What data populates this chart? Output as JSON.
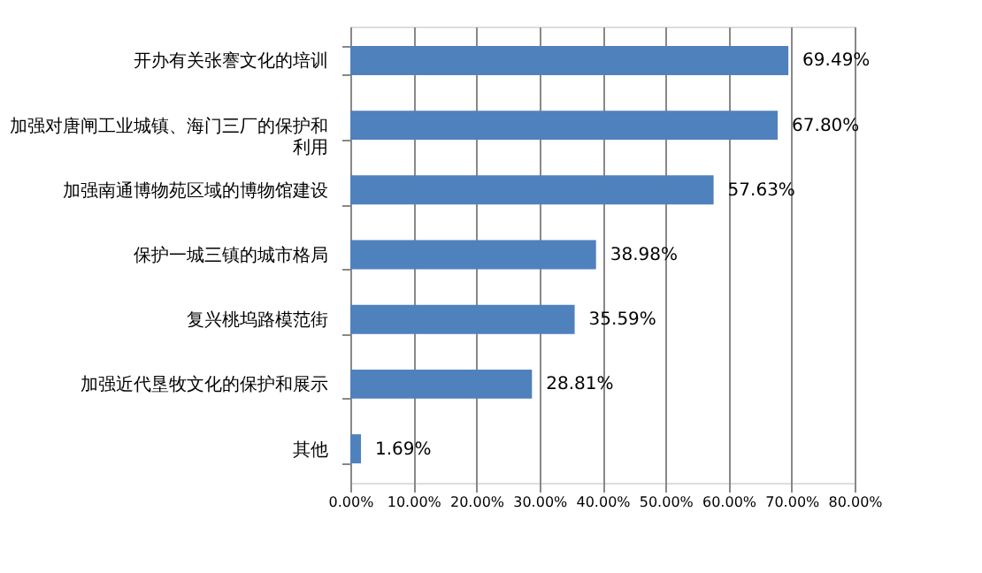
{
  "chart_data": {
    "type": "bar",
    "orientation": "horizontal",
    "categories": [
      "开办有关张謇文化的培训",
      "加强对唐闸工业城镇、海门三厂的保护和利用",
      "加强南通博物苑区域的博物馆建设",
      "保护一城三镇的城市格局",
      "复兴桃坞路模范街",
      "加强近代垦牧文化的保护和展示",
      "其他"
    ],
    "values": [
      69.49,
      67.8,
      57.63,
      38.98,
      35.59,
      28.81,
      1.69
    ],
    "value_labels": [
      "69.49%",
      "67.80%",
      "57.63%",
      "38.98%",
      "35.59%",
      "28.81%",
      "1.69%"
    ],
    "color": "#4f81bd",
    "xlim": [
      0,
      80
    ],
    "xticks": [
      {
        "value": 0,
        "label": "0.00%"
      },
      {
        "value": 10,
        "label": "10.00%"
      },
      {
        "value": 20,
        "label": "20.00%"
      },
      {
        "value": 30,
        "label": "30.00%"
      },
      {
        "value": 40,
        "label": "40.00%"
      },
      {
        "value": 50,
        "label": "50.00%"
      },
      {
        "value": 60,
        "label": "60.00%"
      },
      {
        "value": 70,
        "label": "70.00%"
      },
      {
        "value": 80,
        "label": "80.00%"
      }
    ],
    "grid": "x"
  }
}
